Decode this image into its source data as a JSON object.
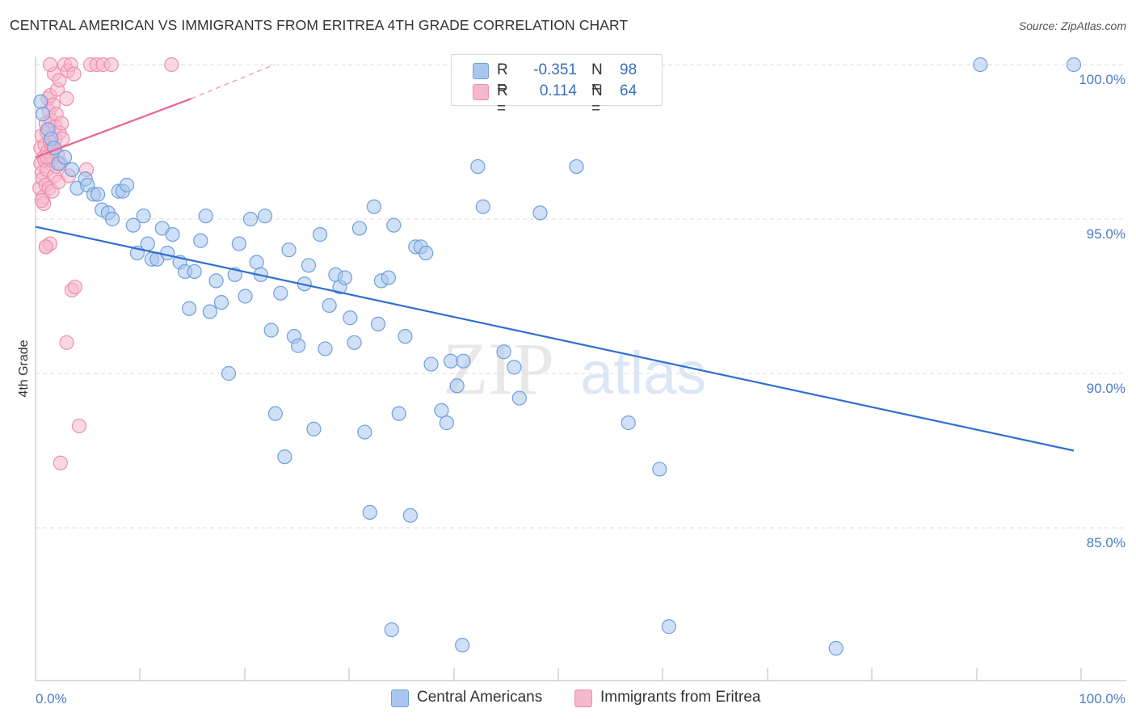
{
  "header": {
    "title": "CENTRAL AMERICAN VS IMMIGRANTS FROM ERITREA 4TH GRADE CORRELATION CHART",
    "source": "Source: ZipAtlas.com"
  },
  "legend": {
    "series1": {
      "r_label": "R =",
      "r_value": "-0.351",
      "n_label": "N =",
      "n_value": "98"
    },
    "series2": {
      "r_label": "R =",
      "r_value": "0.114",
      "n_label": "N =",
      "n_value": "64"
    }
  },
  "bottom_legend": {
    "series1_label": "Central Americans",
    "series2_label": "Immigrants from Eritrea"
  },
  "watermark": {
    "zip": "ZIP",
    "atlas": "atlas"
  },
  "colors": {
    "blue_fill": "#a9c7ee",
    "blue_stroke": "#6f9fdc",
    "blue_line": "#2f6fcf",
    "pink_fill": "#f6b8cc",
    "pink_stroke": "#ec8fae",
    "pink_line": "#e8648f",
    "grid": "#dddddd",
    "axis_text": "#4a7cc7"
  },
  "chart_data": {
    "type": "scatter",
    "title": "CENTRAL AMERICAN VS IMMIGRANTS FROM ERITREA 4TH GRADE CORRELATION CHART",
    "xlabel": "",
    "ylabel": "4th Grade",
    "xlim": [
      0,
      100
    ],
    "ylim": [
      80.5,
      100.8
    ],
    "x_tick_labels": [
      "0.0%",
      "100.0%"
    ],
    "y_ticks": [
      {
        "value": 100.0,
        "label": "100.0%"
      },
      {
        "value": 95.0,
        "label": "95.0%"
      },
      {
        "value": 90.0,
        "label": "90.0%"
      },
      {
        "value": 85.0,
        "label": "85.0%"
      }
    ],
    "grid": true,
    "series": [
      {
        "name": "Central Americans",
        "color": "blue",
        "r": -0.351,
        "n": 98,
        "trend": {
          "x": [
            0,
            100
          ],
          "y": [
            94.75,
            87.5
          ]
        },
        "points": [
          [
            0.5,
            98.8
          ],
          [
            0.7,
            98.4
          ],
          [
            1.2,
            97.9
          ],
          [
            1.5,
            97.6
          ],
          [
            1.8,
            97.3
          ],
          [
            2.2,
            96.8
          ],
          [
            2.8,
            97.0
          ],
          [
            3.5,
            96.6
          ],
          [
            4.0,
            96.0
          ],
          [
            4.8,
            96.3
          ],
          [
            5.0,
            96.1
          ],
          [
            5.6,
            95.8
          ],
          [
            6.0,
            95.8
          ],
          [
            6.4,
            95.3
          ],
          [
            7.0,
            95.2
          ],
          [
            7.4,
            95.0
          ],
          [
            8.0,
            95.9
          ],
          [
            8.4,
            95.9
          ],
          [
            8.8,
            96.1
          ],
          [
            9.4,
            94.8
          ],
          [
            9.8,
            93.9
          ],
          [
            10.4,
            95.1
          ],
          [
            10.8,
            94.2
          ],
          [
            11.2,
            93.7
          ],
          [
            11.7,
            93.7
          ],
          [
            12.2,
            94.7
          ],
          [
            12.7,
            93.9
          ],
          [
            13.2,
            94.5
          ],
          [
            13.9,
            93.6
          ],
          [
            14.4,
            93.3
          ],
          [
            14.8,
            92.1
          ],
          [
            15.3,
            93.3
          ],
          [
            15.9,
            94.3
          ],
          [
            16.4,
            95.1
          ],
          [
            16.8,
            92.0
          ],
          [
            17.4,
            93.0
          ],
          [
            17.9,
            92.3
          ],
          [
            18.6,
            90.0
          ],
          [
            19.2,
            93.2
          ],
          [
            19.6,
            94.2
          ],
          [
            20.2,
            92.5
          ],
          [
            20.7,
            95.0
          ],
          [
            21.3,
            93.6
          ],
          [
            21.7,
            93.2
          ],
          [
            22.1,
            95.1
          ],
          [
            22.7,
            91.4
          ],
          [
            23.1,
            88.7
          ],
          [
            23.6,
            92.6
          ],
          [
            24.0,
            87.3
          ],
          [
            24.4,
            94.0
          ],
          [
            24.9,
            91.2
          ],
          [
            25.3,
            90.9
          ],
          [
            25.9,
            92.9
          ],
          [
            26.3,
            93.5
          ],
          [
            26.8,
            88.2
          ],
          [
            27.4,
            94.5
          ],
          [
            27.9,
            90.8
          ],
          [
            28.3,
            92.2
          ],
          [
            28.9,
            93.2
          ],
          [
            29.3,
            92.8
          ],
          [
            29.8,
            93.1
          ],
          [
            30.3,
            91.8
          ],
          [
            30.7,
            91.0
          ],
          [
            31.2,
            94.7
          ],
          [
            31.7,
            88.1
          ],
          [
            32.2,
            85.5
          ],
          [
            32.6,
            95.4
          ],
          [
            33.0,
            91.6
          ],
          [
            33.3,
            93.0
          ],
          [
            34.0,
            93.1
          ],
          [
            34.5,
            94.8
          ],
          [
            35.0,
            88.7
          ],
          [
            35.6,
            91.2
          ],
          [
            36.1,
            85.4
          ],
          [
            36.6,
            94.1
          ],
          [
            37.1,
            94.1
          ],
          [
            37.6,
            93.9
          ],
          [
            38.1,
            90.3
          ],
          [
            39.1,
            88.8
          ],
          [
            39.6,
            88.4
          ],
          [
            40.0,
            90.4
          ],
          [
            40.6,
            89.6
          ],
          [
            41.2,
            90.4
          ],
          [
            42.6,
            96.7
          ],
          [
            43.1,
            95.4
          ],
          [
            45.1,
            90.7
          ],
          [
            46.1,
            90.2
          ],
          [
            46.6,
            89.2
          ],
          [
            48.6,
            95.2
          ],
          [
            52.1,
            96.7
          ],
          [
            57.1,
            88.4
          ],
          [
            60.1,
            86.9
          ],
          [
            91.0,
            100.0
          ],
          [
            100.0,
            100.0
          ],
          [
            34.3,
            81.7
          ],
          [
            41.1,
            81.2
          ],
          [
            61.0,
            81.8
          ],
          [
            77.1,
            81.1
          ]
        ]
      },
      {
        "name": "Immigrants from Eritrea",
        "color": "pink",
        "r": 0.114,
        "n": 64,
        "trend": {
          "x": [
            0,
            15
          ],
          "y": [
            97.0,
            98.9
          ],
          "dashed_extension": {
            "x": [
              15,
              23
            ],
            "y": [
              98.9,
              100.0
            ]
          }
        },
        "points": [
          [
            0.4,
            96.0
          ],
          [
            0.5,
            96.8
          ],
          [
            0.5,
            97.3
          ],
          [
            0.6,
            96.5
          ],
          [
            0.6,
            97.7
          ],
          [
            0.7,
            95.7
          ],
          [
            0.7,
            96.3
          ],
          [
            0.8,
            97.0
          ],
          [
            0.8,
            95.5
          ],
          [
            0.9,
            96.9
          ],
          [
            0.9,
            97.4
          ],
          [
            1.0,
            98.1
          ],
          [
            1.0,
            96.1
          ],
          [
            1.1,
            97.8
          ],
          [
            1.1,
            96.6
          ],
          [
            1.2,
            98.9
          ],
          [
            1.2,
            97.2
          ],
          [
            1.3,
            98.5
          ],
          [
            1.3,
            96.0
          ],
          [
            1.4,
            97.5
          ],
          [
            1.4,
            99.0
          ],
          [
            1.5,
            96.9
          ],
          [
            1.5,
            98.2
          ],
          [
            1.6,
            97.3
          ],
          [
            1.6,
            95.9
          ],
          [
            1.7,
            98.7
          ],
          [
            1.7,
            97.0
          ],
          [
            1.8,
            99.7
          ],
          [
            1.8,
            96.4
          ],
          [
            1.9,
            98.0
          ],
          [
            1.9,
            97.6
          ],
          [
            2.0,
            96.7
          ],
          [
            2.0,
            98.4
          ],
          [
            2.1,
            97.1
          ],
          [
            2.1,
            99.2
          ],
          [
            2.2,
            96.2
          ],
          [
            2.3,
            97.8
          ],
          [
            2.3,
            99.5
          ],
          [
            2.4,
            96.8
          ],
          [
            2.5,
            98.1
          ],
          [
            1.4,
            100.0
          ],
          [
            2.8,
            100.0
          ],
          [
            3.1,
            99.8
          ],
          [
            3.0,
            98.9
          ],
          [
            3.4,
            100.0
          ],
          [
            3.7,
            99.7
          ],
          [
            5.3,
            100.0
          ],
          [
            5.9,
            100.0
          ],
          [
            6.5,
            100.0
          ],
          [
            7.3,
            100.0
          ],
          [
            13.1,
            100.0
          ],
          [
            1.0,
            94.1
          ],
          [
            1.4,
            94.2
          ],
          [
            3.0,
            91.0
          ],
          [
            3.5,
            92.7
          ],
          [
            3.8,
            92.8
          ],
          [
            4.2,
            88.3
          ],
          [
            2.4,
            87.1
          ],
          [
            4.9,
            96.6
          ],
          [
            3.2,
            96.4
          ],
          [
            0.6,
            95.6
          ],
          [
            1.0,
            94.1
          ],
          [
            2.6,
            97.6
          ],
          [
            1.1,
            97.0
          ]
        ]
      }
    ]
  }
}
